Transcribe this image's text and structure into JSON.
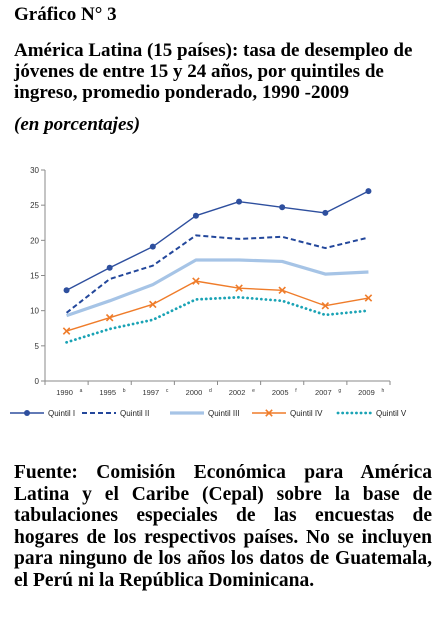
{
  "heading": "Gráfico N° 3",
  "title": "América Latina (15 países): tasa de desempleo de jóvenes de entre 15 y 24 años, por quintiles de ingreso, promedio ponderado, 1990 -2009",
  "subtitle": "(en porcentajes)",
  "source": "Fuente: Comisión Económica para América Latina y el Caribe (Cepal) sobre la base de tabulaciones especiales de las encuestas de hogares de los respectivos países. No se incluyen para ninguno de los años los datos de Guatemala, el Perú ni la República Dominicana.",
  "chart_data": {
    "type": "line",
    "title": "",
    "xlabel": "",
    "ylabel": "",
    "categories": [
      "1990",
      "1995",
      "1997",
      "2000",
      "2002",
      "2005",
      "2007",
      "2009"
    ],
    "category_superscripts": [
      "a",
      "b",
      "c",
      "d",
      "e",
      "f",
      "g",
      "h"
    ],
    "ylim": [
      0,
      30
    ],
    "yticks": [
      0,
      5,
      10,
      15,
      20,
      25,
      30
    ],
    "grid": false,
    "legend": "bottom",
    "series": [
      {
        "name": "Quintil I",
        "color": "#2e4f9e",
        "style": "solid-marker-circle",
        "values": [
          12.9,
          16.1,
          19.1,
          23.5,
          25.5,
          24.7,
          23.9,
          27.0
        ]
      },
      {
        "name": "Quintil II",
        "color": "#23479b",
        "style": "dashed",
        "values": [
          9.7,
          14.5,
          16.4,
          20.7,
          20.2,
          20.5,
          18.9,
          20.4
        ]
      },
      {
        "name": "Quintil III",
        "color": "#a6c4e6",
        "style": "solid-thick",
        "values": [
          9.3,
          11.4,
          13.7,
          17.2,
          17.2,
          17.0,
          15.2,
          15.5
        ]
      },
      {
        "name": "Quintil IV",
        "color": "#ef7c2a",
        "style": "solid-marker-x",
        "values": [
          7.1,
          9.0,
          10.9,
          14.2,
          13.2,
          12.9,
          10.7,
          11.8
        ]
      },
      {
        "name": "Quintil V",
        "color": "#1aa3b5",
        "style": "dotted",
        "values": [
          5.5,
          7.4,
          8.7,
          11.6,
          11.9,
          11.4,
          9.4,
          10.0
        ]
      }
    ]
  }
}
